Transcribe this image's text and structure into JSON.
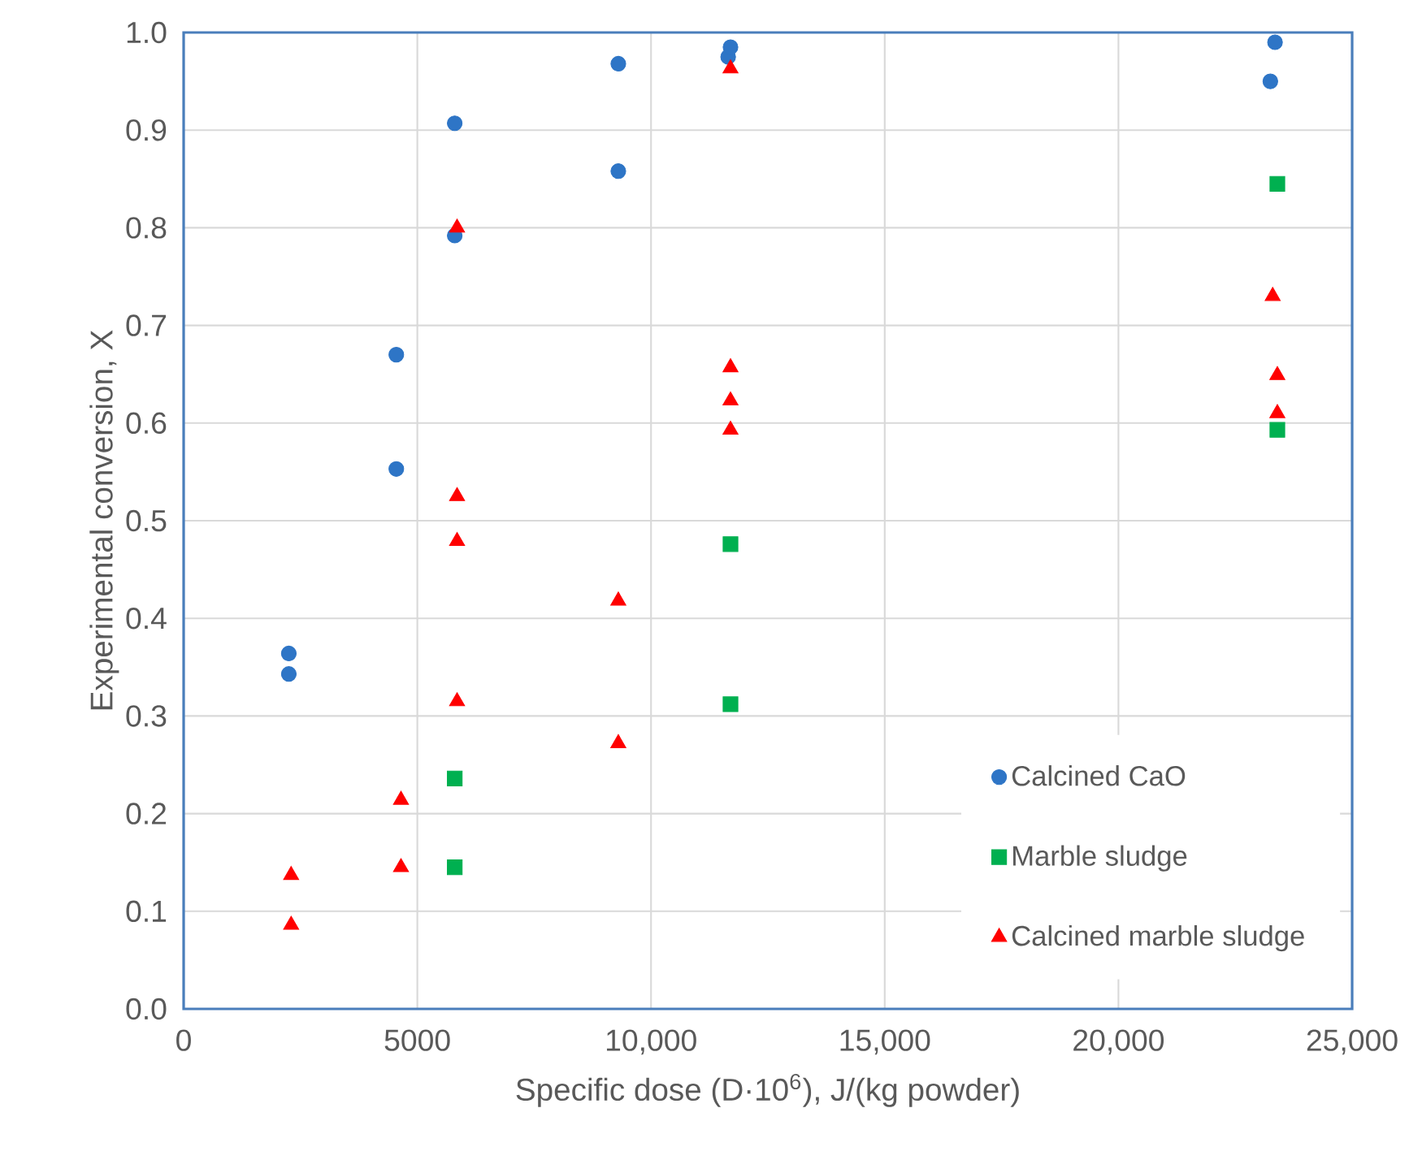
{
  "chart_data": {
    "type": "scatter",
    "xlabel": "Specific dose (D·10$^{6}$), J/(kg powder)",
    "ylabel": "Experimental conversion, X",
    "xlim": [
      0,
      25000
    ],
    "xticks": [
      0,
      5000,
      {
        "value": 10000,
        "label": "10,000"
      },
      {
        "value": 15000,
        "label": "15,000"
      },
      {
        "value": 20000,
        "label": "20,000"
      },
      {
        "value": 25000,
        "label": "25,000"
      }
    ],
    "ylim": [
      0,
      1
    ],
    "yticks": [
      {
        "value": 0,
        "label": "0.0"
      },
      0.1,
      0.2,
      0.3,
      0.4,
      0.5,
      0.6,
      0.7,
      0.8,
      0.9,
      {
        "value": 1,
        "label": "1.0"
      }
    ],
    "grid": true,
    "legend": "bottom right",
    "series": [
      {
        "name": "Calcined CaO",
        "color": "#2e75c6",
        "marker": "circle",
        "x": [
          2250,
          2250,
          4550,
          4550,
          5800,
          5800,
          9300,
          9300,
          11650,
          11700,
          23250,
          23350
        ],
        "values": [
          0.364,
          0.343,
          0.67,
          0.553,
          0.907,
          0.792,
          0.968,
          0.858,
          0.975,
          0.985,
          0.95,
          0.99
        ]
      },
      {
        "name": "Marble sludge",
        "color": "#00b050",
        "marker": "square",
        "x": [
          5800,
          5800,
          11700,
          11700,
          23400,
          23400
        ],
        "values": [
          0.236,
          0.145,
          0.476,
          0.312,
          0.845,
          0.593
        ]
      },
      {
        "name": "Calcined marble sludge",
        "color": "#ff0000",
        "marker": "triangle",
        "x": [
          2300,
          2300,
          4650,
          4650,
          5850,
          5850,
          5850,
          5850,
          9300,
          9300,
          11700,
          11700,
          11700,
          11700,
          23300,
          23400,
          23400
        ],
        "values": [
          0.137,
          0.086,
          0.214,
          0.145,
          0.8,
          0.525,
          0.479,
          0.315,
          0.418,
          0.272,
          0.963,
          0.657,
          0.623,
          0.593,
          0.73,
          0.649,
          0.61
        ]
      }
    ]
  }
}
